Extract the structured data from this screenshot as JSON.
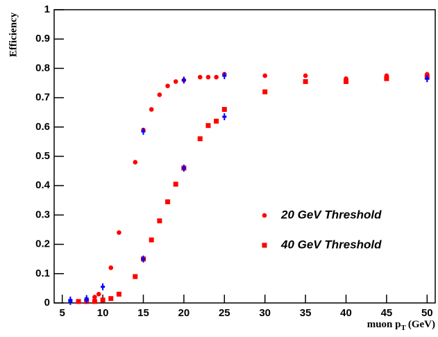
{
  "chart_data": {
    "type": "scatter",
    "y_label": "Efficiency",
    "x_label": {
      "main": "muon p",
      "sub": "T",
      "unit": "(GeV)"
    },
    "xlim": [
      4,
      51
    ],
    "ylim": [
      0,
      1
    ],
    "xticks": [
      5,
      10,
      15,
      20,
      25,
      30,
      35,
      40,
      45,
      50
    ],
    "yticks": [
      0,
      0.1,
      0.2,
      0.3,
      0.4,
      0.5,
      0.6,
      0.7,
      0.8,
      0.9,
      1
    ],
    "series": [
      {
        "name": "20 GeV Threshold",
        "color": "#ff0000",
        "marker": "circle",
        "x": [
          7,
          8,
          9,
          9.5,
          11,
          12,
          14,
          15,
          16,
          17,
          18,
          19,
          20,
          22,
          23,
          24,
          25,
          30,
          35,
          40,
          45,
          50
        ],
        "values": [
          0.005,
          0.01,
          0.02,
          0.03,
          0.12,
          0.24,
          0.48,
          0.59,
          0.66,
          0.71,
          0.74,
          0.755,
          0.76,
          0.77,
          0.77,
          0.77,
          0.78,
          0.775,
          0.775,
          0.765,
          0.775,
          0.78
        ]
      },
      {
        "name": "40 GeV Threshold",
        "color": "#ff0000",
        "marker": "square",
        "x": [
          7,
          8,
          9,
          10,
          11,
          12,
          14,
          15,
          16,
          17,
          18,
          19,
          20,
          22,
          23,
          24,
          25,
          30,
          35,
          40,
          45,
          50
        ],
        "values": [
          0.005,
          0.005,
          0.005,
          0.01,
          0.015,
          0.03,
          0.09,
          0.15,
          0.215,
          0.28,
          0.345,
          0.405,
          0.46,
          0.56,
          0.605,
          0.62,
          0.66,
          0.72,
          0.755,
          0.755,
          0.765,
          0.77
        ]
      },
      {
        "color": "#0000ff",
        "marker": "cross",
        "x": [
          6,
          8,
          10,
          15,
          20,
          25,
          50
        ],
        "values": [
          0.01,
          0.015,
          0.055,
          0.585,
          0.76,
          0.775,
          0.765
        ]
      },
      {
        "color": "#0000ff",
        "marker": "cross",
        "x": [
          6,
          8,
          15,
          20,
          25,
          50
        ],
        "values": [
          0.005,
          0.01,
          0.15,
          0.46,
          0.635,
          0.765
        ]
      }
    ]
  }
}
